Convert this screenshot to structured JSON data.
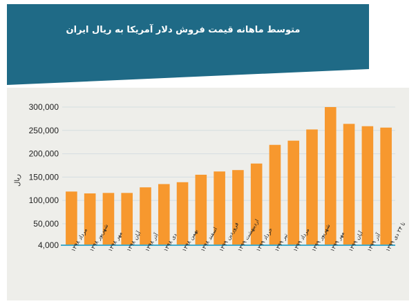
{
  "header": {
    "title": "متوسط ماهانه قیمت فروش دلار آمریکا به ریال ایران"
  },
  "colors": {
    "banner": "#1f6a86",
    "bar": "#f7982e",
    "baseline": "#41a9c9",
    "grid": "#d4dde0",
    "panel": "#eeeeea"
  },
  "chart_data": {
    "type": "bar",
    "title": "متوسط ماهانه قیمت فروش دلار آمریکا به ریال ایران",
    "ylabel": "ریال",
    "xlabel": "",
    "ylim": [
      4000,
      300000
    ],
    "yticks": [
      4000,
      50000,
      100000,
      150000,
      200000,
      250000,
      300000
    ],
    "ytick_labels": [
      "4,000",
      "50,000",
      "100,000",
      "150,000",
      "200,000",
      "250,000",
      "300,000"
    ],
    "grid": true,
    "categories": [
      "مرداد ۱۳۹۸",
      "شهریور ۱۳۹۸",
      "مهر ۱۳۹۸",
      "آبان ۱۳۹۸",
      "آذر ۱۳۹۸",
      "دی ۱۳۹۸",
      "بهمن ۱۳۹۸",
      "اسفند ۱۳۹۸",
      "فروردین ۱۳۹۹",
      "اردیبهشت ۱۳۹۹",
      "خرداد ۱۳۹۹",
      "تیر ۱۳۹۹",
      "مرداد ۱۳۹۹",
      "شهریور ۱۳۹۹",
      "مهر ۱۳۹۹",
      "آبان ۱۳۹۹",
      "آذر ۱۳۹۹",
      "تا ۲۴ دی ۱۳۹۹"
    ],
    "values": [
      119000,
      115000,
      116000,
      116000,
      128000,
      135000,
      139000,
      155000,
      162000,
      165000,
      179000,
      219000,
      228000,
      252000,
      300000,
      264000,
      259000,
      256000
    ]
  }
}
